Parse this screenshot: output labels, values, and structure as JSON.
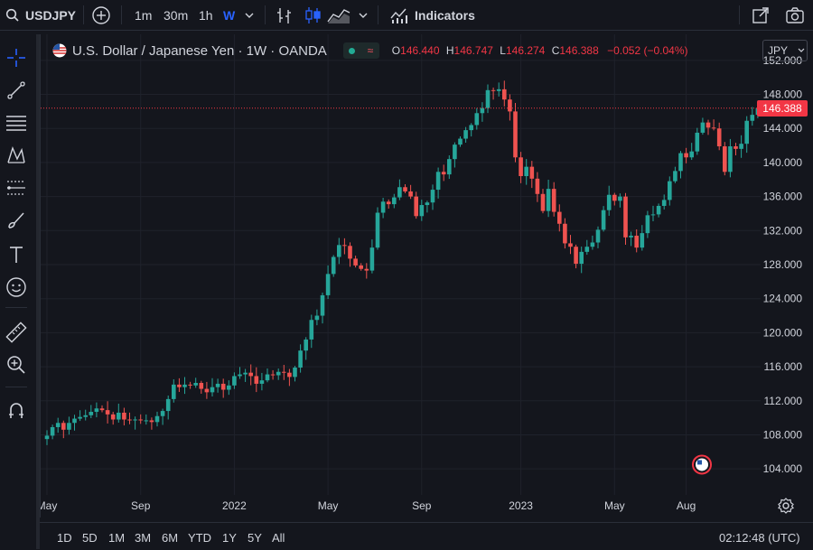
{
  "toolbar": {
    "symbol": "USDJPY",
    "intervals": [
      "1m",
      "30m",
      "1h",
      "W"
    ],
    "active_interval": "W",
    "indicators_label": "Indicators"
  },
  "legend": {
    "title": "U.S. Dollar / Japanese Yen · 1W · OANDA",
    "o_label": "O",
    "o_value": "146.440",
    "h_label": "H",
    "h_value": "146.747",
    "l_label": "L",
    "l_value": "146.274",
    "c_label": "C",
    "c_value": "146.388",
    "change": "−0.052 (−0.04%)"
  },
  "currency_button": "JPY",
  "last_price_label": "146.388",
  "bottom": {
    "ranges": [
      "1D",
      "5D",
      "1M",
      "3M",
      "6M",
      "YTD",
      "1Y",
      "5Y",
      "All"
    ],
    "time": "02:12:48 (UTC)"
  },
  "colors": {
    "up": "#26a69a",
    "down": "#ef5350",
    "bg": "#14161d",
    "grid": "#1f222b",
    "accent": "#2962ff",
    "price_line": "#f23645"
  },
  "chart_data": {
    "type": "candlestick",
    "title": "U.S. Dollar / Japanese Yen · 1W · OANDA",
    "ylim": [
      102,
      154
    ],
    "y_ticks": [
      104,
      108,
      112,
      116,
      120,
      124,
      128,
      132,
      136,
      140,
      144,
      148,
      152
    ],
    "y_tick_labels": [
      "104.000",
      "108.000",
      "112.000",
      "116.000",
      "120.000",
      "124.000",
      "128.000",
      "132.000",
      "136.000",
      "140.000",
      "144.000",
      "148.000",
      "152.000"
    ],
    "x_labels": [
      {
        "label": "May",
        "index": 0
      },
      {
        "label": "Sep",
        "index": 17
      },
      {
        "label": "2022",
        "index": 34
      },
      {
        "label": "May",
        "index": 51
      },
      {
        "label": "Sep",
        "index": 68
      },
      {
        "label": "2023",
        "index": 86
      },
      {
        "label": "May",
        "index": 103
      },
      {
        "label": "Aug",
        "index": 116
      }
    ],
    "last_price": 146.388,
    "weekly_closes": [
      107.9,
      108.9,
      109.4,
      108.6,
      109.4,
      109.9,
      110.1,
      110.3,
      110.7,
      111.1,
      110.9,
      110.4,
      109.8,
      110.6,
      109.8,
      109.7,
      109.8,
      109.7,
      109.7,
      109.5,
      110.2,
      110.8,
      112.2,
      113.9,
      113.6,
      113.9,
      113.8,
      114.1,
      113.4,
      113.0,
      113.6,
      114.0,
      113.3,
      113.8,
      114.9,
      115.1,
      115.3,
      114.9,
      114.0,
      114.4,
      115.1,
      115.0,
      115.4,
      115.3,
      114.8,
      115.9,
      117.9,
      119.2,
      121.5,
      122.0,
      124.4,
      126.9,
      128.9,
      130.3,
      130.2,
      128.7,
      127.9,
      127.5,
      127.3,
      130.0,
      134.1,
      135.4,
      135.1,
      135.9,
      137.1,
      136.6,
      136.0,
      133.7,
      135.0,
      135.3,
      136.8,
      138.9,
      138.6,
      140.4,
      142.1,
      142.8,
      143.8,
      144.4,
      145.8,
      146.4,
      148.5,
      148.4,
      148.6,
      147.4,
      146.0,
      140.6,
      138.4,
      139.5,
      138.1,
      136.3,
      134.3,
      136.9,
      134.2,
      132.8,
      130.5,
      130.1,
      128.1,
      129.5,
      130.1,
      130.6,
      132.1,
      134.4,
      136.2,
      135.5,
      136.0,
      131.2,
      131.4,
      130.0,
      131.7,
      133.8,
      133.9,
      134.9,
      135.6,
      137.8,
      139.0,
      141.1,
      140.6,
      141.3,
      143.5,
      144.7,
      144.1,
      144.0,
      141.9,
      138.9,
      141.9,
      141.6,
      142.2,
      144.9,
      145.6,
      146.4
    ]
  }
}
